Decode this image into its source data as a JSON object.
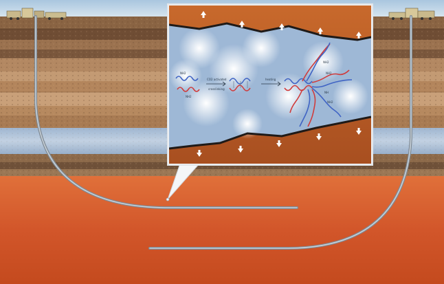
{
  "diagram": {
    "colors": {
      "sky": "#bcd3e6",
      "topsoil": "#7f5a3b",
      "stripe_dark": "#6e4c33",
      "stripe_light": "#b58a63",
      "aquifer": "#a9bfd8",
      "shale_top": "#d9632c",
      "shale_bottom": "#c2441c",
      "wellbore": "#9ea8b2",
      "fracture": "#3a2418",
      "inset_rock": "#b85a26",
      "inset_gas": "#9bb4d2",
      "polymer_blue": "#3f63c4",
      "polymer_red": "#d03b3b"
    },
    "icons": [
      "rig-left-icon",
      "rig-right-icon",
      "up-arrow-icon",
      "down-arrow-icon"
    ],
    "inset": {
      "reaction_text": [
        {
          "name": "label-monomer-top",
          "text": "NH2"
        },
        {
          "name": "label-monomer-bottom",
          "text": "NH2"
        },
        {
          "name": "label-step1-line1",
          "text": "CO2 activated"
        },
        {
          "name": "label-step1-line2",
          "text": "crosslinking"
        },
        {
          "name": "label-step2",
          "text": "heating"
        },
        {
          "name": "label-cluster-1",
          "text": "NH2"
        },
        {
          "name": "label-cluster-2",
          "text": "NH2"
        },
        {
          "name": "label-cluster-3",
          "text": "NH"
        },
        {
          "name": "label-cluster-4",
          "text": "NH2"
        }
      ]
    }
  }
}
